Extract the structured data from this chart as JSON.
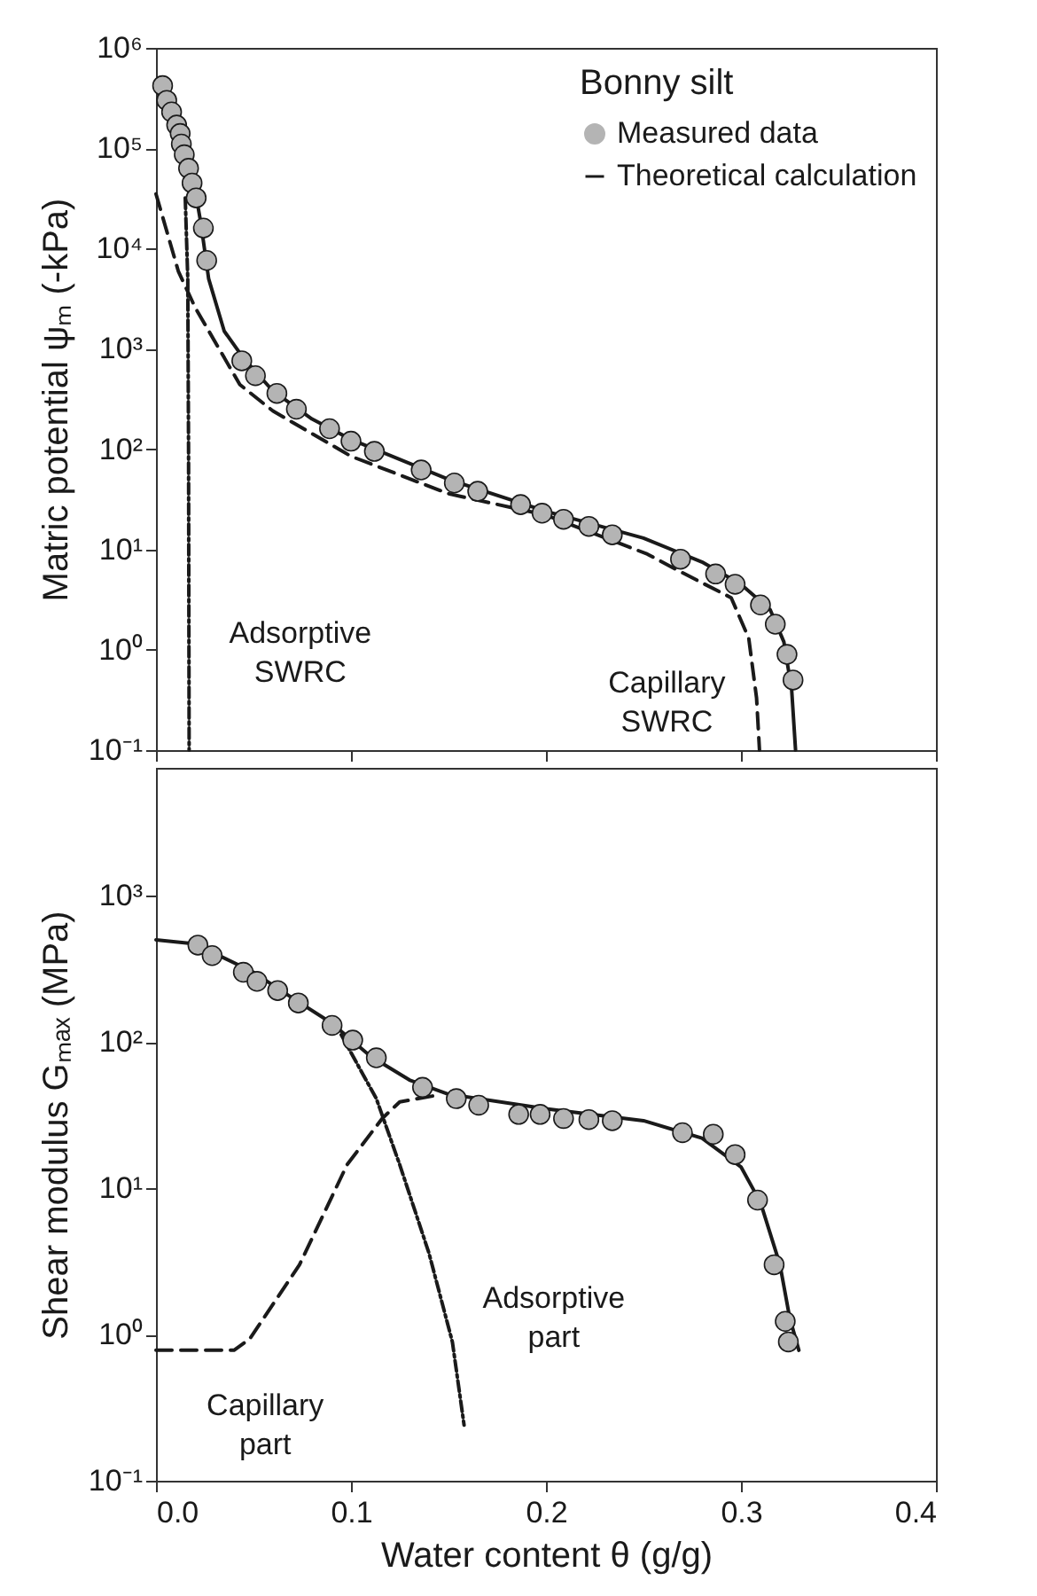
{
  "chart_data": [
    {
      "type": "line",
      "ylabel": "Matric potential ψₘ (-kPa)",
      "legend_title": "Bonny silt",
      "legend": "top right",
      "log": "y",
      "tick_labels": "y",
      "xlim": [
        0,
        0.4
      ],
      "xticks": [
        0,
        0.1,
        0.2,
        0.3,
        0.4
      ],
      "ylim": [
        0.1,
        1000000
      ],
      "yticks": [
        {
          "value": 0.1,
          "label": "10⁻¹"
        },
        {
          "value": 1,
          "label": "10⁰"
        },
        {
          "value": 10,
          "label": "10¹"
        },
        {
          "value": 100,
          "label": "10²"
        },
        {
          "value": 1000,
          "label": "10³"
        },
        {
          "value": 10000,
          "label": "10⁴"
        },
        {
          "value": 100000,
          "label": "10⁵"
        },
        {
          "value": 1000000,
          "label": "10⁶"
        }
      ],
      "annotations": [
        "Adsorptive\nSWRC",
        "Capillary\nSWRC"
      ],
      "series": [
        {
          "name": "Measured data",
          "type": "scatter",
          "marker": "circle",
          "color": "#b4b4b4",
          "x": [
            0.0034,
            0.0055,
            0.008,
            0.0106,
            0.0124,
            0.013,
            0.0145,
            0.0167,
            0.0185,
            0.0206,
            0.0243,
            0.026,
            0.044,
            0.051,
            0.062,
            0.072,
            0.089,
            0.1,
            0.112,
            0.136,
            0.153,
            0.165,
            0.187,
            0.198,
            0.209,
            0.222,
            0.234,
            0.269,
            0.287,
            0.297,
            0.31,
            0.3176,
            0.3236,
            0.3267
          ],
          "values": [
            420000,
            300000,
            230000,
            170000,
            140000,
            110000,
            86000,
            63000,
            45000,
            32000,
            16000,
            7600,
            760,
            540,
            360,
            250,
            160,
            120,
            95,
            62,
            46,
            38,
            28,
            23,
            20,
            17,
            14,
            8,
            5.7,
            4.5,
            2.8,
            1.8,
            0.9,
            0.5
          ]
        },
        {
          "name": "Theoretical calculation",
          "line_style": "solid",
          "color": "#1a1a1a",
          "x": [
            0.021,
            0.023,
            0.027,
            0.035,
            0.045,
            0.06,
            0.08,
            0.1,
            0.15,
            0.2,
            0.25,
            0.28,
            0.3,
            0.315,
            0.322,
            0.326,
            0.328
          ],
          "values": [
            30000,
            18000,
            5000,
            1500,
            800,
            380,
            200,
            125,
            50,
            24,
            13,
            7.5,
            4.5,
            2.5,
            1.2,
            0.4,
            0.1
          ]
        },
        {
          "line_style": "dashed",
          "color": "#1a1a1a",
          "x": [
            0,
            0.0115,
            0.02,
            0.043,
            0.06,
            0.1,
            0.15,
            0.2,
            0.252,
            0.269,
            0.295,
            0.304,
            0.308,
            0.3095
          ],
          "values": [
            35000,
            5900,
            2600,
            440,
            240,
            85,
            36,
            22,
            9,
            6,
            3.3,
            1.3,
            0.33,
            0.1
          ]
        },
        {
          "line_style": "dotted",
          "color": "#1a1a1a",
          "x": [
            0.015,
            0.0163,
            0.0167,
            0.017
          ],
          "values": [
            32000,
            5000,
            100,
            0.1
          ]
        }
      ]
    },
    {
      "type": "line",
      "xlabel": "Water content θ (g/g)",
      "ylabel": "Shear modulus Gₘₐₓ (MPa)",
      "log": "y",
      "xlim": [
        0,
        0.4
      ],
      "xticks": [
        {
          "value": 0,
          "label": "0.0"
        },
        0.1,
        0.2,
        0.3,
        0.4
      ],
      "ylim": [
        0.1,
        7500
      ],
      "yticks": [
        {
          "value": 0.1,
          "label": "10⁻¹"
        },
        {
          "value": 1,
          "label": "10⁰"
        },
        {
          "value": 10,
          "label": "10¹"
        },
        {
          "value": 100,
          "label": "10²"
        },
        {
          "value": 1000,
          "label": "10³"
        }
      ],
      "annotations": [
        "Adsorptive\npart",
        "Capillary\npart"
      ],
      "series": [
        {
          "line_style": "solid",
          "color": "#1a1a1a",
          "x": [
            0,
            0.02,
            0.05,
            0.07,
            0.09,
            0.11,
            0.13,
            0.15,
            0.2,
            0.25,
            0.28,
            0.3,
            0.31,
            0.32,
            0.325,
            0.3297
          ],
          "values": [
            500,
            470,
            300,
            200,
            135,
            80,
            55,
            44,
            35,
            29,
            22,
            14,
            8,
            3,
            1.3,
            0.78
          ]
        },
        {
          "line_style": "dashed",
          "color": "#1a1a1a",
          "x": [
            0,
            0.04,
            0.048,
            0.0736,
            0.098,
            0.116,
            0.125,
            0.143
          ],
          "values": [
            0.78,
            0.78,
            0.93,
            3,
            14.5,
            30,
            39,
            43
          ]
        },
        {
          "line_style": "dotted",
          "color": "#1a1a1a",
          "x": [
            0.095,
            0.113,
            0.125,
            0.14,
            0.152,
            0.158
          ],
          "values": [
            112,
            41,
            14.5,
            3.6,
            0.89,
            0.24
          ]
        },
        {
          "type": "scatter",
          "marker": "circle",
          "color": "#b4b4b4",
          "x": [
            0.0215,
            0.0288,
            0.0448,
            0.0518,
            0.0624,
            0.073,
            0.0903,
            0.1009,
            0.113,
            0.1367,
            0.154,
            0.1655,
            0.186,
            0.197,
            0.209,
            0.222,
            0.234,
            0.27,
            0.2858,
            0.297,
            0.3085,
            0.317,
            0.3227,
            0.3243
          ],
          "values": [
            460,
            390,
            300,
            260,
            225,
            185,
            130,
            103,
            78,
            49,
            41,
            37,
            32,
            32,
            30,
            29.5,
            29,
            24,
            23.4,
            17,
            8.3,
            3,
            1.23,
            0.89
          ]
        }
      ]
    }
  ]
}
